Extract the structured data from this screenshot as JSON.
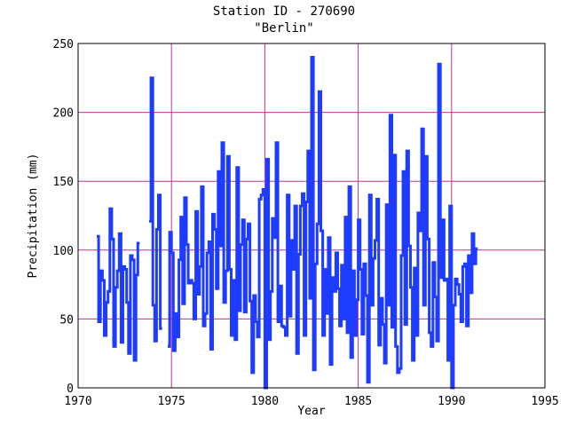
{
  "chart_data": {
    "type": "line",
    "title": "Station ID - 270690",
    "subtitle": "\"Berlin\"",
    "xlabel": "Year",
    "ylabel": "Precipitation (mm)",
    "xlim": [
      1970,
      1995
    ],
    "ylim": [
      0,
      250
    ],
    "xticks": [
      1970,
      1975,
      1980,
      1985,
      1990,
      1995
    ],
    "yticks": [
      0,
      50,
      100,
      150,
      200,
      250
    ],
    "grid": true,
    "colors": {
      "line": "#1e3cff",
      "grid": "#c0338a",
      "axis": "#000000"
    },
    "gaps": [
      [
        1973.2,
        1973.8
      ],
      [
        1974.4,
        1974.8
      ]
    ],
    "series": [
      {
        "values": [
          [
            1971.0,
            110
          ],
          [
            1971.1,
            48
          ],
          [
            1971.2,
            85
          ],
          [
            1971.3,
            78
          ],
          [
            1971.4,
            38
          ],
          [
            1971.5,
            62
          ],
          [
            1971.6,
            70
          ],
          [
            1971.7,
            130
          ],
          [
            1971.8,
            108
          ],
          [
            1971.9,
            30
          ],
          [
            1972.0,
            73
          ],
          [
            1972.1,
            85
          ],
          [
            1972.2,
            112
          ],
          [
            1972.3,
            33
          ],
          [
            1972.4,
            88
          ],
          [
            1972.5,
            86
          ],
          [
            1972.6,
            62
          ],
          [
            1972.7,
            25
          ],
          [
            1972.8,
            96
          ],
          [
            1972.9,
            93
          ],
          [
            1973.0,
            20
          ],
          [
            1973.1,
            82
          ],
          [
            1973.2,
            105
          ],
          [
            1973.8,
            121
          ],
          [
            1973.9,
            225
          ],
          [
            1974.0,
            60
          ],
          [
            1974.1,
            34
          ],
          [
            1974.2,
            115
          ],
          [
            1974.3,
            140
          ],
          [
            1974.4,
            43
          ],
          [
            1974.8,
            30
          ],
          [
            1974.9,
            113
          ],
          [
            1975.0,
            98
          ],
          [
            1975.1,
            27
          ],
          [
            1975.2,
            54
          ],
          [
            1975.3,
            37
          ],
          [
            1975.4,
            93
          ],
          [
            1975.5,
            124
          ],
          [
            1975.6,
            61
          ],
          [
            1975.7,
            138
          ],
          [
            1975.8,
            104
          ],
          [
            1975.9,
            76
          ],
          [
            1976.0,
            78
          ],
          [
            1976.1,
            76
          ],
          [
            1976.2,
            50
          ],
          [
            1976.3,
            128
          ],
          [
            1976.4,
            68
          ],
          [
            1976.5,
            88
          ],
          [
            1976.6,
            146
          ],
          [
            1976.7,
            45
          ],
          [
            1976.8,
            54
          ],
          [
            1976.9,
            98
          ],
          [
            1977.0,
            106
          ],
          [
            1977.1,
            28
          ],
          [
            1977.2,
            126
          ],
          [
            1977.3,
            115
          ],
          [
            1977.4,
            72
          ],
          [
            1977.5,
            157
          ],
          [
            1977.6,
            103
          ],
          [
            1977.7,
            178
          ],
          [
            1977.8,
            62
          ],
          [
            1977.9,
            85
          ],
          [
            1978.0,
            168
          ],
          [
            1978.1,
            86
          ],
          [
            1978.2,
            38
          ],
          [
            1978.3,
            78
          ],
          [
            1978.4,
            35
          ],
          [
            1978.5,
            160
          ],
          [
            1978.6,
            56
          ],
          [
            1978.7,
            104
          ],
          [
            1978.8,
            122
          ],
          [
            1978.9,
            55
          ],
          [
            1979.0,
            108
          ],
          [
            1979.1,
            119
          ],
          [
            1979.2,
            63
          ],
          [
            1979.3,
            11
          ],
          [
            1979.4,
            67
          ],
          [
            1979.5,
            48
          ],
          [
            1979.6,
            37
          ],
          [
            1979.7,
            137
          ],
          [
            1979.8,
            140
          ],
          [
            1979.9,
            144
          ],
          [
            1980.0,
            0
          ],
          [
            1980.1,
            166
          ],
          [
            1980.2,
            35
          ],
          [
            1980.3,
            70
          ],
          [
            1980.4,
            123
          ],
          [
            1980.5,
            109
          ],
          [
            1980.6,
            178
          ],
          [
            1980.7,
            48
          ],
          [
            1980.8,
            74
          ],
          [
            1980.9,
            45
          ],
          [
            1981.0,
            44
          ],
          [
            1981.1,
            38
          ],
          [
            1981.2,
            140
          ],
          [
            1981.3,
            52
          ],
          [
            1981.4,
            107
          ],
          [
            1981.5,
            86
          ],
          [
            1981.6,
            132
          ],
          [
            1981.7,
            25
          ],
          [
            1981.8,
            97
          ],
          [
            1981.9,
            132
          ],
          [
            1982.0,
            141
          ],
          [
            1982.1,
            38
          ],
          [
            1982.2,
            135
          ],
          [
            1982.3,
            172
          ],
          [
            1982.4,
            65
          ],
          [
            1982.5,
            240
          ],
          [
            1982.6,
            13
          ],
          [
            1982.7,
            90
          ],
          [
            1982.8,
            119
          ],
          [
            1982.9,
            215
          ],
          [
            1983.0,
            114
          ],
          [
            1983.1,
            38
          ],
          [
            1983.2,
            86
          ],
          [
            1983.3,
            54
          ],
          [
            1983.4,
            109
          ],
          [
            1983.5,
            17
          ],
          [
            1983.6,
            80
          ],
          [
            1983.7,
            70
          ],
          [
            1983.8,
            98
          ],
          [
            1983.9,
            72
          ],
          [
            1984.0,
            45
          ],
          [
            1984.1,
            89
          ],
          [
            1984.2,
            50
          ],
          [
            1984.3,
            124
          ],
          [
            1984.4,
            40
          ],
          [
            1984.5,
            146
          ],
          [
            1984.6,
            22
          ],
          [
            1984.7,
            85
          ],
          [
            1984.8,
            38
          ],
          [
            1984.9,
            64
          ],
          [
            1985.0,
            122
          ],
          [
            1985.1,
            86
          ],
          [
            1985.2,
            39
          ],
          [
            1985.3,
            90
          ],
          [
            1985.4,
            67
          ],
          [
            1985.5,
            4
          ],
          [
            1985.6,
            140
          ],
          [
            1985.7,
            60
          ],
          [
            1985.8,
            94
          ],
          [
            1985.9,
            107
          ],
          [
            1986.0,
            137
          ],
          [
            1986.1,
            31
          ],
          [
            1986.2,
            65
          ],
          [
            1986.3,
            46
          ],
          [
            1986.4,
            18
          ],
          [
            1986.5,
            133
          ],
          [
            1986.6,
            60
          ],
          [
            1986.7,
            198
          ],
          [
            1986.8,
            44
          ],
          [
            1986.9,
            169
          ],
          [
            1987.0,
            30
          ],
          [
            1987.1,
            11
          ],
          [
            1987.2,
            14
          ],
          [
            1987.3,
            96
          ],
          [
            1987.4,
            157
          ],
          [
            1987.5,
            46
          ],
          [
            1987.6,
            172
          ],
          [
            1987.7,
            103
          ],
          [
            1987.8,
            73
          ],
          [
            1987.9,
            20
          ],
          [
            1988.0,
            87
          ],
          [
            1988.1,
            38
          ],
          [
            1988.2,
            127
          ],
          [
            1988.3,
            114
          ],
          [
            1988.4,
            188
          ],
          [
            1988.5,
            60
          ],
          [
            1988.6,
            168
          ],
          [
            1988.7,
            108
          ],
          [
            1988.8,
            40
          ],
          [
            1988.9,
            30
          ],
          [
            1989.0,
            91
          ],
          [
            1989.1,
            66
          ],
          [
            1989.2,
            34
          ],
          [
            1989.3,
            235
          ],
          [
            1989.4,
            80
          ],
          [
            1989.5,
            122
          ],
          [
            1989.6,
            78
          ],
          [
            1989.7,
            79
          ],
          [
            1989.8,
            20
          ],
          [
            1989.9,
            132
          ],
          [
            1990.0,
            0
          ],
          [
            1990.1,
            60
          ],
          [
            1990.2,
            79
          ],
          [
            1990.3,
            75
          ],
          [
            1990.4,
            68
          ],
          [
            1990.5,
            48
          ],
          [
            1990.6,
            88
          ],
          [
            1990.7,
            90
          ],
          [
            1990.8,
            45
          ],
          [
            1990.9,
            96
          ],
          [
            1991.0,
            69
          ],
          [
            1991.1,
            112
          ],
          [
            1991.2,
            90
          ],
          [
            1991.3,
            101
          ]
        ]
      }
    ]
  }
}
